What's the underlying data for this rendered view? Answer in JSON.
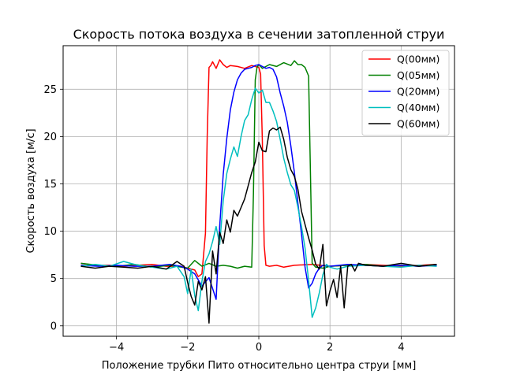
{
  "chart_data": {
    "type": "line",
    "title": "Скорость потока воздуха в сечении затопленной струи",
    "xlabel": "Положение трубки Пито относительно центра струи [мм]",
    "ylabel": "Скорость воздуха [м/с]",
    "xlim": [
      -5.5,
      5.5
    ],
    "ylim": [
      -1.1,
      29.6
    ],
    "xticks": [
      -4,
      -2,
      0,
      2,
      4
    ],
    "xtick_labels": [
      "−4",
      "−2",
      "0",
      "2",
      "4"
    ],
    "yticks": [
      0,
      5,
      10,
      15,
      20,
      25
    ],
    "grid": true,
    "legend_position": "top-right",
    "series": [
      {
        "name": "Q(00мм)",
        "color": "#ff0000",
        "x": [
          -5,
          -4.6,
          -4.2,
          -3.8,
          -3.4,
          -3.0,
          -2.6,
          -2.2,
          -2.0,
          -1.8,
          -1.7,
          -1.6,
          -1.5,
          -1.45,
          -1.4,
          -1.35,
          -1.3,
          -1.2,
          -1.1,
          -1.0,
          -0.9,
          -0.8,
          -0.6,
          -0.4,
          -0.2,
          0,
          0.05,
          0.1,
          0.15,
          0.2,
          0.3,
          0.5,
          0.7,
          1.0,
          1.5,
          2.0,
          2.5,
          3.0,
          3.5,
          4.0,
          4.5,
          5.0
        ],
        "y": [
          6.6,
          6.4,
          6.4,
          6.3,
          6.4,
          6.5,
          6.3,
          6.3,
          6.1,
          5.9,
          5.2,
          5.5,
          9.8,
          20.0,
          27.3,
          27.5,
          27.9,
          27.2,
          28.1,
          27.6,
          27.3,
          27.5,
          27.4,
          27.2,
          27.5,
          27.3,
          26.6,
          19.5,
          8.5,
          6.4,
          6.3,
          6.4,
          6.2,
          6.4,
          6.5,
          6.3,
          6.4,
          6.5,
          6.4,
          6.3,
          6.4,
          6.5
        ]
      },
      {
        "name": "Q(05мм)",
        "color": "#008000",
        "x": [
          -5,
          -4.5,
          -4.0,
          -3.5,
          -3.0,
          -2.5,
          -2.0,
          -1.8,
          -1.6,
          -1.4,
          -1.2,
          -1.0,
          -0.8,
          -0.6,
          -0.4,
          -0.2,
          -0.15,
          -0.1,
          -0.05,
          0,
          0.1,
          0.3,
          0.5,
          0.7,
          0.9,
          1.0,
          1.1,
          1.2,
          1.3,
          1.4,
          1.5,
          1.6,
          1.8,
          2.0,
          2.5,
          3.0,
          3.5,
          4.0,
          4.5,
          5.0
        ],
        "y": [
          6.6,
          6.4,
          6.3,
          6.5,
          6.2,
          6.4,
          6.1,
          6.9,
          6.3,
          6.6,
          6.3,
          6.4,
          6.3,
          6.1,
          6.3,
          6.2,
          14.0,
          26.0,
          27.3,
          27.6,
          27.2,
          27.6,
          27.4,
          27.8,
          27.5,
          28.0,
          27.6,
          27.6,
          27.3,
          26.4,
          6.6,
          6.2,
          6.1,
          6.3,
          6.4,
          6.5,
          6.3,
          6.4,
          6.3,
          6.5
        ]
      },
      {
        "name": "Q(20мм)",
        "color": "#0000ff",
        "x": [
          -5,
          -4.5,
          -4.0,
          -3.5,
          -3.0,
          -2.5,
          -2.2,
          -2.0,
          -1.8,
          -1.6,
          -1.4,
          -1.2,
          -1.1,
          -1.0,
          -0.9,
          -0.8,
          -0.7,
          -0.6,
          -0.5,
          -0.4,
          -0.3,
          -0.2,
          -0.1,
          0,
          0.1,
          0.2,
          0.3,
          0.4,
          0.5,
          0.6,
          0.7,
          0.8,
          0.9,
          1.0,
          1.1,
          1.2,
          1.3,
          1.4,
          1.5,
          1.6,
          1.7,
          1.8,
          2.0,
          2.5,
          3.0,
          3.5,
          4.0,
          4.5,
          5.0
        ],
        "y": [
          6.4,
          6.3,
          6.4,
          6.3,
          6.3,
          6.5,
          6.3,
          6.0,
          5.5,
          4.2,
          5.1,
          2.8,
          10.5,
          16.0,
          19.8,
          22.8,
          24.7,
          26.0,
          26.7,
          27.1,
          27.2,
          27.3,
          27.5,
          27.6,
          27.4,
          27.2,
          27.3,
          27.1,
          26.3,
          24.6,
          23.2,
          21.5,
          19.0,
          16.2,
          12.9,
          9.7,
          6.2,
          4.0,
          4.5,
          5.5,
          6.1,
          6.4,
          6.3,
          6.5,
          6.4,
          6.3,
          6.4,
          6.3,
          6.4
        ]
      },
      {
        "name": "Q(40мм)",
        "color": "#00bfbf",
        "x": [
          -5,
          -4.6,
          -4.2,
          -3.8,
          -3.4,
          -3.0,
          -2.6,
          -2.3,
          -2.1,
          -2.0,
          -1.9,
          -1.8,
          -1.7,
          -1.6,
          -1.5,
          -1.4,
          -1.3,
          -1.2,
          -1.1,
          -1.0,
          -0.9,
          -0.8,
          -0.7,
          -0.6,
          -0.5,
          -0.4,
          -0.3,
          -0.2,
          -0.1,
          0,
          0.1,
          0.2,
          0.3,
          0.4,
          0.5,
          0.6,
          0.7,
          0.8,
          0.9,
          1.0,
          1.1,
          1.2,
          1.3,
          1.4,
          1.5,
          1.6,
          1.7,
          1.8,
          1.9,
          2.0,
          2.2,
          2.5,
          3.0,
          3.5,
          4.0,
          4.5,
          5.0
        ],
        "y": [
          6.3,
          6.5,
          6.3,
          6.8,
          6.4,
          6.2,
          6.0,
          6.3,
          5.2,
          3.4,
          6.0,
          3.2,
          1.6,
          4.7,
          6.8,
          7.6,
          8.9,
          10.5,
          8.6,
          13.2,
          16.1,
          17.6,
          18.9,
          17.9,
          20.0,
          21.7,
          22.3,
          23.9,
          25.1,
          24.6,
          24.9,
          23.6,
          23.6,
          22.7,
          21.6,
          19.7,
          17.7,
          16.2,
          14.9,
          14.3,
          12.5,
          10.5,
          8.2,
          4.8,
          0.9,
          1.9,
          3.5,
          5.4,
          6.5,
          6.2,
          6.0,
          6.3,
          6.4,
          6.3,
          6.2,
          6.4,
          6.3
        ]
      },
      {
        "name": "Q(60мм)",
        "color": "#000000",
        "x": [
          -5,
          -4.6,
          -4.2,
          -3.8,
          -3.4,
          -3.0,
          -2.6,
          -2.3,
          -2.1,
          -2.0,
          -1.9,
          -1.8,
          -1.7,
          -1.6,
          -1.5,
          -1.4,
          -1.3,
          -1.2,
          -1.1,
          -1.0,
          -0.9,
          -0.8,
          -0.7,
          -0.6,
          -0.5,
          -0.4,
          -0.3,
          -0.2,
          -0.1,
          0,
          0.1,
          0.2,
          0.3,
          0.4,
          0.5,
          0.6,
          0.7,
          0.8,
          0.9,
          1.0,
          1.1,
          1.2,
          1.3,
          1.4,
          1.5,
          1.6,
          1.7,
          1.8,
          1.9,
          2.0,
          2.1,
          2.2,
          2.3,
          2.4,
          2.5,
          2.6,
          2.7,
          2.8,
          3.0,
          3.5,
          4.0,
          4.5,
          5.0
        ],
        "y": [
          6.3,
          6.1,
          6.3,
          6.2,
          6.1,
          6.3,
          6.0,
          6.8,
          6.3,
          4.6,
          3.1,
          2.2,
          4.7,
          3.8,
          5.2,
          0.3,
          7.9,
          5.5,
          9.9,
          8.7,
          11.2,
          9.9,
          12.2,
          11.6,
          12.5,
          13.4,
          14.8,
          16.2,
          17.3,
          19.4,
          18.5,
          18.4,
          20.6,
          20.9,
          20.7,
          21.0,
          19.7,
          17.8,
          16.5,
          15.8,
          14.4,
          12.1,
          10.7,
          9.3,
          8.0,
          6.5,
          6.0,
          8.6,
          2.1,
          3.7,
          4.9,
          3.0,
          6.3,
          1.9,
          6.3,
          6.5,
          5.8,
          6.6,
          6.4,
          6.3,
          6.6,
          6.3,
          6.5
        ]
      }
    ]
  }
}
